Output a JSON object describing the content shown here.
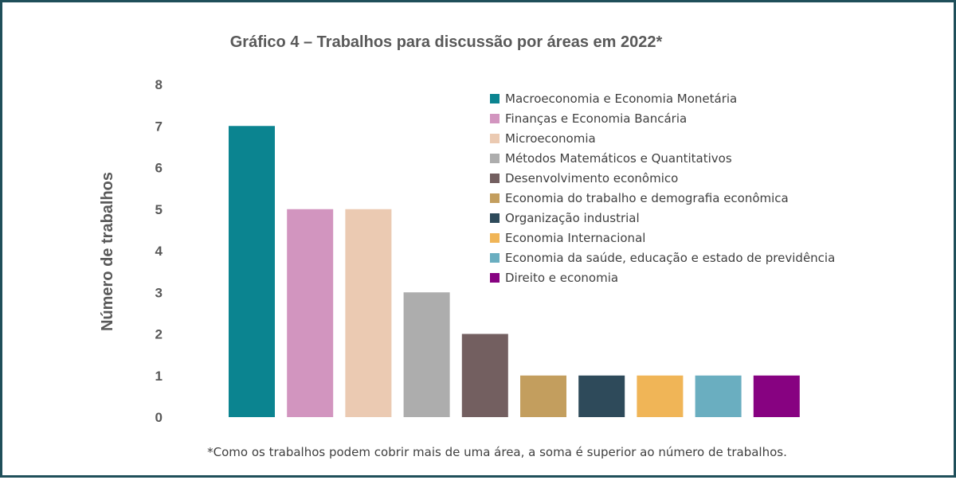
{
  "chart_data": {
    "type": "bar",
    "title": "Gráfico 4 – Trabalhos para discussão por áreas em 2022*",
    "xlabel": "",
    "ylabel": "Número de trabalhos",
    "ylim": [
      0,
      8
    ],
    "yticks": [
      "0",
      "1",
      "2",
      "3",
      "4",
      "5",
      "6",
      "7",
      "8"
    ],
    "grid": false,
    "legend_position": "top-right",
    "categories": [
      "Macroeconomia e Economia Monetária",
      "Finanças e Economia Bancária",
      "Microeconomia",
      "Métodos Matemáticos e Quantitativos",
      "Desenvolvimento econômico",
      "Economia do trabalho e demografia econômica",
      "Organização industrial",
      "Economia Internacional",
      "Economia da saúde, educação e estado de previdência",
      "Direito e economia"
    ],
    "values": [
      7,
      5,
      5,
      3,
      2,
      1,
      1,
      1,
      1,
      1
    ],
    "colors": [
      "#0b8490",
      "#d295bf",
      "#ebcab2",
      "#adadad",
      "#735f60",
      "#c39e5e",
      "#2e4a5a",
      "#f0b557",
      "#6aaec0",
      "#870281"
    ]
  },
  "footnote": "*Como os trabalhos podem cobrir mais de uma área, a soma é superior ao número de trabalhos."
}
